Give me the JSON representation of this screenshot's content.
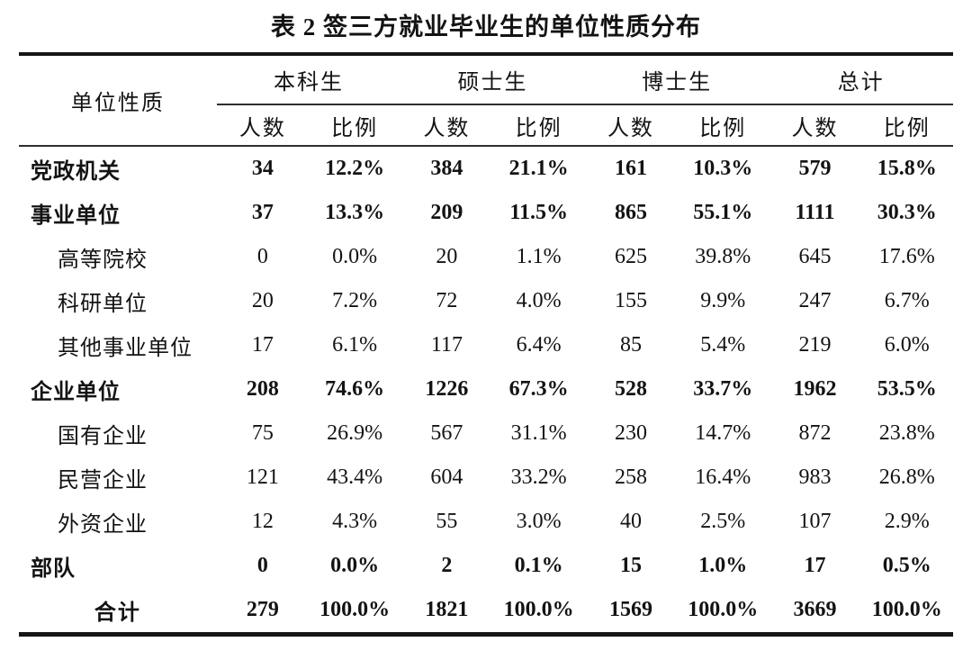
{
  "title": "表 2 签三方就业毕业生的单位性质分布",
  "table": {
    "row_header": "单位性质",
    "groups": [
      {
        "label": "本科生"
      },
      {
        "label": "硕士生"
      },
      {
        "label": "博士生"
      },
      {
        "label": "总计"
      }
    ],
    "subheaders": {
      "count": "人数",
      "ratio": "比例"
    },
    "rows": [
      {
        "label": "党政机关",
        "values": [
          "34",
          "12.2%",
          "384",
          "21.1%",
          "161",
          "10.3%",
          "579",
          "15.8%"
        ]
      },
      {
        "label": "事业单位",
        "values": [
          "37",
          "13.3%",
          "209",
          "11.5%",
          "865",
          "55.1%",
          "1111",
          "30.3%"
        ]
      },
      {
        "label": "高等院校",
        "values": [
          "0",
          "0.0%",
          "20",
          "1.1%",
          "625",
          "39.8%",
          "645",
          "17.6%"
        ]
      },
      {
        "label": "科研单位",
        "values": [
          "20",
          "7.2%",
          "72",
          "4.0%",
          "155",
          "9.9%",
          "247",
          "6.7%"
        ]
      },
      {
        "label": "其他事业单位",
        "values": [
          "17",
          "6.1%",
          "117",
          "6.4%",
          "85",
          "5.4%",
          "219",
          "6.0%"
        ]
      },
      {
        "label": "企业单位",
        "values": [
          "208",
          "74.6%",
          "1226",
          "67.3%",
          "528",
          "33.7%",
          "1962",
          "53.5%"
        ]
      },
      {
        "label": "国有企业",
        "values": [
          "75",
          "26.9%",
          "567",
          "31.1%",
          "230",
          "14.7%",
          "872",
          "23.8%"
        ]
      },
      {
        "label": "民营企业",
        "values": [
          "121",
          "43.4%",
          "604",
          "33.2%",
          "258",
          "16.4%",
          "983",
          "26.8%"
        ]
      },
      {
        "label": "外资企业",
        "values": [
          "12",
          "4.3%",
          "55",
          "3.0%",
          "40",
          "2.5%",
          "107",
          "2.9%"
        ]
      },
      {
        "label": "部队",
        "values": [
          "0",
          "0.0%",
          "2",
          "0.1%",
          "15",
          "1.0%",
          "17",
          "0.5%"
        ]
      },
      {
        "label": "合计",
        "values": [
          "279",
          "100.0%",
          "1821",
          "100.0%",
          "1569",
          "100.0%",
          "3669",
          "100.0%"
        ]
      }
    ]
  }
}
